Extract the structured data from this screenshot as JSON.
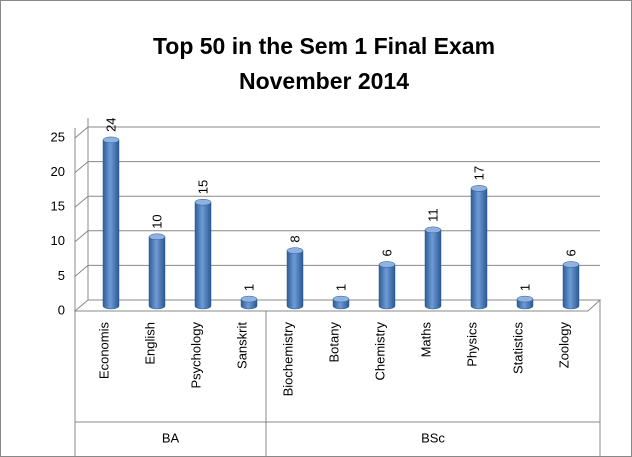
{
  "chart_data": {
    "type": "bar",
    "title": [
      "Top 50 in the Sem 1 Final Exam",
      "November 2014"
    ],
    "groups": [
      {
        "name": "BA",
        "categories": [
          "Economis",
          "English",
          "Psychology",
          "Sanskrit"
        ],
        "values": [
          24,
          10,
          15,
          1
        ]
      },
      {
        "name": "BSc",
        "categories": [
          "Biochemistry",
          "Botany",
          "Chemistry",
          "Maths",
          "Physics",
          "Statistics",
          "Zoology"
        ],
        "values": [
          8,
          1,
          6,
          11,
          17,
          1,
          6
        ]
      }
    ],
    "color": "#4f81bd",
    "ylim": [
      0,
      25
    ],
    "yticks": [
      0,
      5,
      10,
      15,
      20,
      25
    ],
    "grid": true
  }
}
